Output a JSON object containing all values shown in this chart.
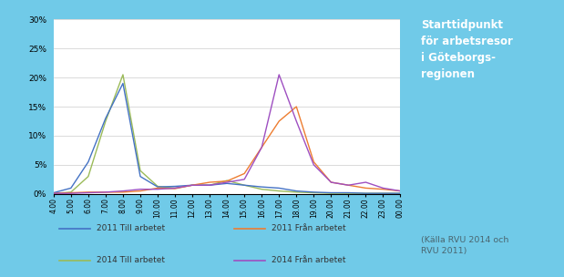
{
  "x_labels": [
    "4.00",
    "5.00",
    "6.00",
    "7.00",
    "8.00",
    "9.00",
    "10.00",
    "11.00",
    "12.00",
    "13.00",
    "14.00",
    "15.00",
    "16.00",
    "17.00",
    "18.00",
    "19.00",
    "20.00",
    "21.00",
    "22.00",
    "23.00",
    "00.00"
  ],
  "x_values": [
    4,
    5,
    6,
    7,
    8,
    9,
    10,
    11,
    12,
    13,
    14,
    15,
    16,
    17,
    18,
    19,
    20,
    21,
    22,
    23,
    24
  ],
  "series_2011_till": [
    0.2,
    1.0,
    5.5,
    13.0,
    19.0,
    3.0,
    1.2,
    1.3,
    1.5,
    1.5,
    1.8,
    1.5,
    1.2,
    1.0,
    0.5,
    0.3,
    0.2,
    0.2,
    0.1,
    0.1,
    0.1
  ],
  "series_2011_fran": [
    0.1,
    0.2,
    0.3,
    0.3,
    0.3,
    0.5,
    1.0,
    0.9,
    1.5,
    2.0,
    2.2,
    3.5,
    8.0,
    12.5,
    15.0,
    5.5,
    2.0,
    1.5,
    1.0,
    0.8,
    0.5
  ],
  "series_2014_till": [
    0.1,
    0.3,
    3.0,
    12.5,
    20.5,
    4.0,
    1.3,
    1.0,
    1.5,
    1.5,
    2.3,
    1.5,
    0.8,
    0.5,
    0.3,
    0.2,
    0.1,
    0.1,
    0.1,
    0.1,
    0.1
  ],
  "series_2014_fran": [
    0.1,
    0.1,
    0.2,
    0.3,
    0.5,
    0.8,
    0.8,
    1.0,
    1.5,
    1.5,
    2.0,
    2.5,
    8.0,
    20.5,
    12.5,
    5.0,
    2.0,
    1.5,
    2.0,
    1.0,
    0.5
  ],
  "color_2011_till": "#4472C4",
  "color_2011_fran": "#ED7D31",
  "color_2014_till": "#9BBB59",
  "color_2014_fran": "#9E4FC1",
  "legend_2011_till": "2011 Till arbetet",
  "legend_2011_fran": "2011 Från arbetet",
  "legend_2014_till": "2014 Till arbetet",
  "legend_2014_fran": "2014 Från arbetet",
  "ylim": [
    0,
    0.3
  ],
  "yticks": [
    0,
    0.05,
    0.1,
    0.15,
    0.2,
    0.25,
    0.3
  ],
  "ytick_labels": [
    "0%",
    "5%",
    "10%",
    "15%",
    "20%",
    "25%",
    "30%"
  ],
  "chart_bg": "#FFFFFF",
  "outer_bg": "#70CAE8",
  "sidebar_title": "Starttidpunkt\nför arbetsresor\ni Göteborgs-\nregionen",
  "sidebar_footnote": "(Källa RVU 2014 och\nRVU 2011)",
  "sidebar_title_color": "#FFFFFF",
  "sidebar_footnote_color": "#4a6670"
}
